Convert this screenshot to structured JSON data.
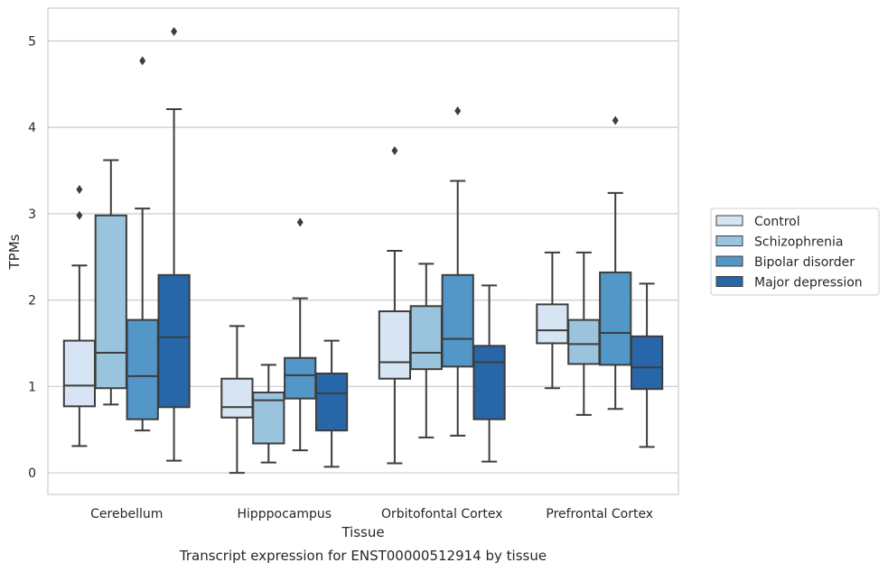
{
  "chart_data": {
    "type": "box",
    "title": "",
    "caption": "Transcript expression for ENST00000512914 by tissue",
    "xlabel": "Tissue",
    "ylabel": "TPMs",
    "ylim": [
      -0.25,
      5.38
    ],
    "yticks": [
      0,
      1,
      2,
      3,
      4,
      5
    ],
    "grid": "horizontal",
    "legend_position": "right",
    "categories": [
      "Cerebellum",
      "Hipppocampus",
      "Orbitofontal Cortex",
      "Prefrontal Cortex"
    ],
    "series": [
      {
        "name": "Control",
        "color": "#d6e4f3",
        "boxes": [
          {
            "whislo": 0.31,
            "q1": 0.77,
            "med": 1.01,
            "q3": 1.53,
            "whishi": 2.4,
            "fliers": [
              2.98,
              3.28
            ]
          },
          {
            "whislo": 0.0,
            "q1": 0.64,
            "med": 0.76,
            "q3": 1.09,
            "whishi": 1.7,
            "fliers": []
          },
          {
            "whislo": 0.11,
            "q1": 1.09,
            "med": 1.28,
            "q3": 1.87,
            "whishi": 2.57,
            "fliers": [
              3.73
            ]
          },
          {
            "whislo": 0.98,
            "q1": 1.5,
            "med": 1.65,
            "q3": 1.95,
            "whishi": 2.55,
            "fliers": []
          }
        ]
      },
      {
        "name": "Schizophrenia",
        "color": "#9ac3dd",
        "boxes": [
          {
            "whislo": 0.79,
            "q1": 0.98,
            "med": 1.39,
            "q3": 2.98,
            "whishi": 3.62,
            "fliers": []
          },
          {
            "whislo": 0.12,
            "q1": 0.34,
            "med": 0.84,
            "q3": 0.93,
            "whishi": 1.25,
            "fliers": []
          },
          {
            "whislo": 0.41,
            "q1": 1.2,
            "med": 1.39,
            "q3": 1.93,
            "whishi": 2.42,
            "fliers": []
          },
          {
            "whislo": 0.67,
            "q1": 1.26,
            "med": 1.49,
            "q3": 1.77,
            "whishi": 2.55,
            "fliers": []
          }
        ]
      },
      {
        "name": "Bipolar disorder",
        "color": "#5397c9",
        "boxes": [
          {
            "whislo": 0.49,
            "q1": 0.62,
            "med": 1.12,
            "q3": 1.77,
            "whishi": 3.06,
            "fliers": [
              4.77
            ]
          },
          {
            "whislo": 0.26,
            "q1": 0.86,
            "med": 1.13,
            "q3": 1.33,
            "whishi": 2.02,
            "fliers": [
              2.9
            ]
          },
          {
            "whislo": 0.43,
            "q1": 1.23,
            "med": 1.55,
            "q3": 2.29,
            "whishi": 3.38,
            "fliers": [
              4.19
            ]
          },
          {
            "whislo": 0.74,
            "q1": 1.25,
            "med": 1.62,
            "q3": 2.32,
            "whishi": 3.24,
            "fliers": [
              4.08
            ]
          }
        ]
      },
      {
        "name": "Major depression",
        "color": "#2766a8",
        "boxes": [
          {
            "whislo": 0.14,
            "q1": 0.76,
            "med": 1.57,
            "q3": 2.29,
            "whishi": 4.21,
            "fliers": [
              5.11
            ]
          },
          {
            "whislo": 0.07,
            "q1": 0.49,
            "med": 0.92,
            "q3": 1.15,
            "whishi": 1.53,
            "fliers": []
          },
          {
            "whislo": 0.13,
            "q1": 0.62,
            "med": 1.28,
            "q3": 1.47,
            "whishi": 2.17,
            "fliers": []
          },
          {
            "whislo": 0.3,
            "q1": 0.97,
            "med": 1.22,
            "q3": 1.58,
            "whishi": 2.19,
            "fliers": []
          }
        ]
      }
    ]
  }
}
